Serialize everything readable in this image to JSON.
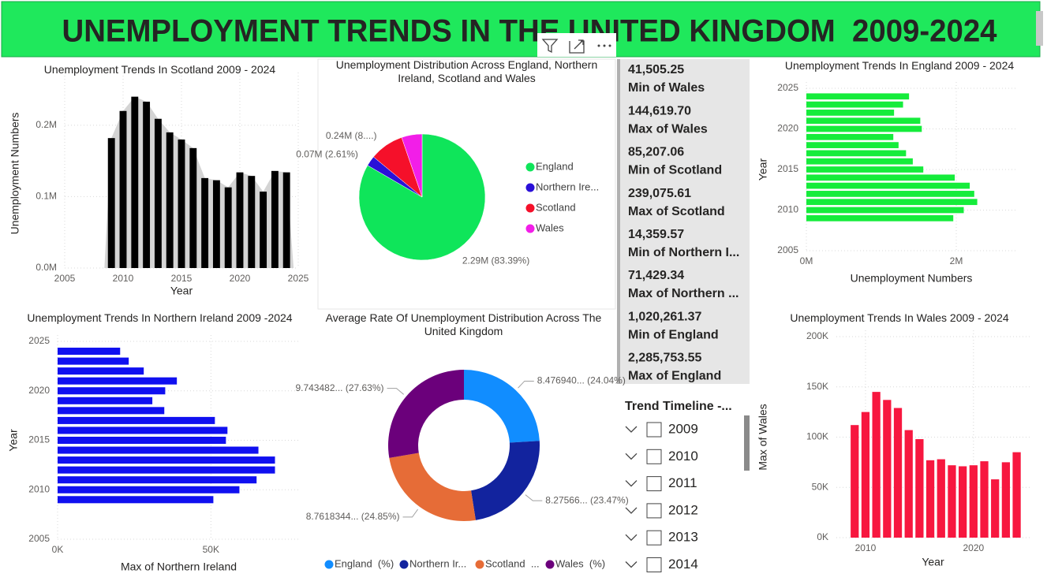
{
  "header": {
    "title": "UNEMPLOYMENT TRENDS IN THE UNITED KINGDOM  2009-2024"
  },
  "chart_data": [
    {
      "type": "bar",
      "title": "Unemployment Trends In Scotland 2009 - 2024",
      "x": [
        2009,
        2010,
        2011,
        2012,
        2013,
        2014,
        2015,
        2016,
        2017,
        2018,
        2019,
        2020,
        2021,
        2022,
        2023,
        2024
      ],
      "values": [
        182000,
        220000,
        240000,
        233000,
        209000,
        190000,
        180000,
        168000,
        126000,
        123000,
        113000,
        134000,
        129000,
        107000,
        136000,
        134000
      ],
      "color": "#000000",
      "area_color": "#d4d4d4",
      "xlim": [
        2005,
        2025
      ],
      "xticks": [
        2005,
        2010,
        2015,
        2020,
        2025
      ],
      "ylim": [
        0,
        265000
      ],
      "yticks": [
        {
          "value": 0,
          "label": "0.0M"
        },
        {
          "value": 100000,
          "label": "0.1M"
        },
        {
          "value": 200000,
          "label": "0.2M"
        }
      ],
      "xlabel": "Year",
      "ylabel": "Unemployment Numbers",
      "grid": true
    },
    {
      "type": "pie",
      "title": "Unemployment Distribution Across England, Northern Ireland, Scotland and Wales",
      "categories": [
        "England",
        "Northern Ire...",
        "Scotland",
        "Wales"
      ],
      "values": [
        2290000,
        71700,
        240000,
        144400
      ],
      "value_labels": [
        "2.29M (83.39%)",
        "0.07M (2.61%)",
        "0.24M (8....)",
        null
      ],
      "colors": [
        "#0fe55a",
        "#2a10d8",
        "#f5102a",
        "#f21ee8"
      ]
    },
    {
      "type": "hbar",
      "title": "Unemployment Trends In England 2009 - 2024",
      "y": [
        2009,
        2010,
        2011,
        2012,
        2013,
        2014,
        2015,
        2016,
        2017,
        2018,
        2019,
        2020,
        2021,
        2022,
        2023,
        2024
      ],
      "values": [
        1960000,
        2100000,
        2280000,
        2240000,
        2180000,
        1980000,
        1560000,
        1420000,
        1330000,
        1230000,
        1160000,
        1540000,
        1520000,
        1170000,
        1290000,
        1370000
      ],
      "color": "#15ec3b",
      "xlim": [
        0,
        2800000
      ],
      "xticks": [
        {
          "value": 0,
          "label": "0M"
        },
        {
          "value": 2000000,
          "label": "2M"
        }
      ],
      "ylim": [
        2005,
        2025
      ],
      "yticks": [
        2005,
        2010,
        2015,
        2020,
        2025
      ],
      "xlabel": "Unemployment Numbers",
      "ylabel": "Year",
      "grid": true
    },
    {
      "type": "hbar",
      "title": "Unemployment Trends In Northern Ireland 2009 -2024",
      "y": [
        2009,
        2010,
        2011,
        2012,
        2013,
        2014,
        2015,
        2016,
        2017,
        2018,
        2019,
        2020,
        2021,
        2022,
        2023,
        2024
      ],
      "values": [
        50800,
        59300,
        64900,
        70900,
        70900,
        65500,
        54900,
        55400,
        51300,
        34800,
        30900,
        35100,
        38900,
        28100,
        23200,
        20400
      ],
      "color": "#1010f0",
      "xlim": [
        0,
        79000
      ],
      "xticks": [
        {
          "value": 0,
          "label": "0K"
        },
        {
          "value": 50000,
          "label": "50K"
        }
      ],
      "ylim": [
        2005,
        2025
      ],
      "yticks": [
        2005,
        2010,
        2015,
        2020,
        2025
      ],
      "xlabel": "Max of Northern Ireland",
      "ylabel": "Year",
      "grid": true
    },
    {
      "type": "donut",
      "title": "Average Rate Of Unemployment Distribution Across The United Kingdom",
      "categories": [
        "England  (%)",
        "Northern Ir...",
        "Scotland  ...",
        "Wales  (%)"
      ],
      "values": [
        8.47694,
        8.27566,
        8.7618344,
        9.743482
      ],
      "value_labels": [
        "8.476940... (24.04%)",
        "8.27566... (23.47%)",
        "8.7618344... (24.85%)",
        "9.743482... (27.63%)"
      ],
      "colors": [
        "#118dff",
        "#12239e",
        "#e66c37",
        "#6b007b"
      ]
    },
    {
      "type": "bar",
      "title": "Unemployment Trends In Wales 2009 - 2024",
      "x": [
        2009,
        2010,
        2011,
        2012,
        2013,
        2014,
        2015,
        2016,
        2017,
        2018,
        2019,
        2020,
        2021,
        2022,
        2023,
        2024
      ],
      "values": [
        112000,
        125000,
        145000,
        137000,
        129000,
        107000,
        98000,
        77000,
        78000,
        72000,
        71000,
        72000,
        76000,
        58000,
        75000,
        85000
      ],
      "color": "#f7173f",
      "xlim": [
        2007.3,
        2025.2
      ],
      "xticks": [
        2010,
        2020
      ],
      "ylim": [
        0,
        200000
      ],
      "yticks": [
        {
          "value": 0,
          "label": "0K"
        },
        {
          "value": 50000,
          "label": "50K"
        },
        {
          "value": 100000,
          "label": "100K"
        },
        {
          "value": 150000,
          "label": "150K"
        },
        {
          "value": 200000,
          "label": "200K"
        }
      ],
      "xlabel": "Year",
      "ylabel": "Max of Wales",
      "grid": true
    }
  ],
  "cards": [
    {
      "value": "41,505.25",
      "label": "Min of Wales"
    },
    {
      "value": "144,619.70",
      "label": "Max of Wales"
    },
    {
      "value": "85,207.06",
      "label": "Min of Scotland"
    },
    {
      "value": "239,075.61",
      "label": "Max of Scotland"
    },
    {
      "value": "14,359.57",
      "label": "Min of Northern I..."
    },
    {
      "value": "71,429.34",
      "label": "Max of Northern ..."
    },
    {
      "value": "1,020,261.37",
      "label": "Min of England"
    },
    {
      "value": "2,285,753.55",
      "label": "Max of England"
    }
  ],
  "slicer": {
    "title": "Trend Timeline -...",
    "items": [
      "2009",
      "2010",
      "2011",
      "2012",
      "2013",
      "2014"
    ]
  }
}
